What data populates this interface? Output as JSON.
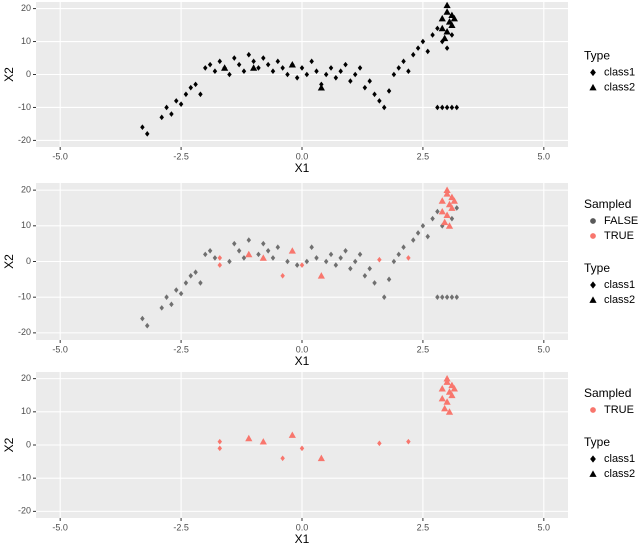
{
  "chart_data": [
    {
      "type": "scatter",
      "x_label": "X1",
      "y_label": "X2",
      "xlim": [
        -5.5,
        5.5
      ],
      "ylim": [
        -22,
        22
      ],
      "xticks": [
        {
          "value": -5,
          "label": "-5.0"
        },
        {
          "value": -2.5,
          "label": "-2.5"
        },
        {
          "value": 0,
          "label": "0.0"
        },
        {
          "value": 2.5,
          "label": "2.5"
        },
        {
          "value": 5,
          "label": "5.0"
        }
      ],
      "yticks": [
        -20,
        -10,
        0,
        10,
        20
      ],
      "grid": true,
      "legends": [
        {
          "title": "Type",
          "entries": [
            {
              "label": "class1",
              "shape": "diamond",
              "color": "#000000"
            },
            {
              "label": "class2",
              "shape": "triangle",
              "color": "#000000"
            }
          ]
        }
      ],
      "series": [
        {
          "shape": "diamond",
          "color": "#000000",
          "x": [
            -3.3,
            -3.2,
            -2.9,
            -2.8,
            -2.7,
            -2.6,
            -2.5,
            -2.4,
            -2.3,
            -2.2,
            -2.1,
            -2.0,
            -1.9,
            -1.8,
            -1.7,
            -1.6,
            -1.5,
            -1.4,
            -1.3,
            -1.2,
            -1.1,
            -1.0,
            -0.9,
            -0.8,
            -0.7,
            -0.6,
            -0.5,
            -0.4,
            -0.3,
            -0.2,
            -0.1,
            0.0,
            0.1,
            0.2,
            0.3,
            0.4,
            0.5,
            0.6,
            0.7,
            0.8,
            0.9,
            1.0,
            1.1,
            1.2,
            1.3,
            1.4,
            1.5,
            1.6,
            1.7,
            1.8,
            1.9,
            2.0,
            2.1,
            2.2,
            2.3,
            2.4,
            2.5,
            2.6,
            2.7,
            2.8,
            2.9,
            2.8,
            2.9,
            3.0,
            3.1,
            3.2,
            3.0,
            3.1
          ],
          "values": [
            -16,
            -18,
            -13,
            -10,
            -12,
            -8,
            -9,
            -6,
            -4,
            -3,
            -6,
            2,
            3,
            1,
            4,
            2,
            0,
            5,
            3,
            1,
            6,
            4,
            2,
            5,
            3,
            1,
            4,
            2,
            0,
            3,
            -1,
            2,
            0,
            4,
            1,
            -3,
            0,
            2,
            -1,
            1,
            3,
            -2,
            0,
            2,
            -4,
            -2,
            -6,
            -8,
            -10,
            -5,
            0,
            2,
            4,
            1,
            6,
            8,
            10,
            7,
            12,
            14,
            10,
            -10,
            -10,
            -10,
            -10,
            -10,
            8,
            12
          ]
        },
        {
          "shape": "triangle",
          "color": "#000000",
          "x": [
            -1.6,
            -1.0,
            -0.2,
            0.4,
            2.9,
            3.0,
            3.1,
            3.0,
            2.95,
            3.05,
            3.1,
            2.9,
            3.0,
            3.15
          ],
          "values": [
            2,
            2,
            3,
            -4,
            17,
            19,
            15,
            13,
            11,
            16,
            18,
            14,
            21,
            17
          ]
        }
      ]
    },
    {
      "type": "scatter",
      "x_label": "X1",
      "y_label": "X2",
      "xlim": [
        -5.5,
        5.5
      ],
      "ylim": [
        -22,
        22
      ],
      "xticks": [
        {
          "value": -5,
          "label": "-5.0"
        },
        {
          "value": -2.5,
          "label": "-2.5"
        },
        {
          "value": 0,
          "label": "0.0"
        },
        {
          "value": 2.5,
          "label": "2.5"
        },
        {
          "value": 5,
          "label": "5.0"
        }
      ],
      "yticks": [
        -20,
        -10,
        0,
        10,
        20
      ],
      "grid": true,
      "legends": [
        {
          "title": "Sampled",
          "entries": [
            {
              "label": "FALSE",
              "shape": "circle",
              "color": "#595959"
            },
            {
              "label": "TRUE",
              "shape": "circle",
              "color": "#F8766D"
            }
          ]
        },
        {
          "title": "Type",
          "entries": [
            {
              "label": "class1",
              "shape": "diamond",
              "color": "#000000"
            },
            {
              "label": "class2",
              "shape": "triangle",
              "color": "#000000"
            }
          ]
        }
      ],
      "series": [
        {
          "shape": "diamond",
          "color": "#595959",
          "x": [
            -3.3,
            -3.2,
            -2.9,
            -2.8,
            -2.7,
            -2.6,
            -2.5,
            -2.4,
            -2.3,
            -2.2,
            -2.1,
            -2.0,
            -1.9,
            -1.8,
            -1.5,
            -1.4,
            -1.3,
            -1.2,
            -1.1,
            -0.9,
            -0.8,
            -0.7,
            -0.6,
            -0.5,
            -0.3,
            -0.1,
            0.1,
            0.2,
            0.3,
            0.5,
            0.6,
            0.7,
            0.8,
            0.9,
            1.0,
            1.1,
            1.2,
            1.3,
            1.4,
            1.5,
            1.7,
            1.8,
            1.9,
            2.0,
            2.1,
            2.3,
            2.4,
            2.5,
            2.6,
            2.7,
            2.8,
            2.9,
            2.8,
            2.9,
            3.0,
            3.1,
            3.2,
            3.2,
            3.1
          ],
          "values": [
            -16,
            -18,
            -13,
            -10,
            -12,
            -8,
            -9,
            -6,
            -4,
            -3,
            -6,
            2,
            3,
            1,
            0,
            5,
            3,
            1,
            6,
            2,
            5,
            3,
            1,
            4,
            0,
            -1,
            0,
            4,
            1,
            0,
            2,
            -1,
            1,
            3,
            -2,
            0,
            2,
            -4,
            -2,
            -6,
            -10,
            -5,
            0,
            2,
            4,
            6,
            8,
            10,
            7,
            12,
            14,
            10,
            -10,
            -10,
            -10,
            -10,
            -10,
            15,
            12
          ]
        },
        {
          "shape": "diamond",
          "color": "#F8766D",
          "x": [
            -1.7,
            -1.7,
            -0.4,
            0.0,
            1.6,
            2.2
          ],
          "values": [
            1,
            -1,
            -4,
            -1,
            0.5,
            1
          ]
        },
        {
          "shape": "triangle",
          "color": "#F8766D",
          "x": [
            -1.1,
            -0.8,
            -0.2,
            0.4,
            2.9,
            3.0,
            3.1,
            3.0,
            2.95,
            3.05,
            3.1,
            2.9,
            3.0,
            3.15,
            3.05
          ],
          "values": [
            2,
            1,
            3,
            -4,
            17,
            19,
            15,
            13,
            11,
            16,
            18,
            14,
            20,
            17,
            10
          ]
        }
      ]
    },
    {
      "type": "scatter",
      "x_label": "X1",
      "y_label": "X2",
      "xlim": [
        -5.5,
        5.5
      ],
      "ylim": [
        -22,
        22
      ],
      "xticks": [
        {
          "value": -5,
          "label": "-5.0"
        },
        {
          "value": -2.5,
          "label": "-2.5"
        },
        {
          "value": 0,
          "label": "0.0"
        },
        {
          "value": 2.5,
          "label": "2.5"
        },
        {
          "value": 5,
          "label": "5.0"
        }
      ],
      "yticks": [
        -20,
        -10,
        0,
        10,
        20
      ],
      "grid": true,
      "legends": [
        {
          "title": "Sampled",
          "entries": [
            {
              "label": "TRUE",
              "shape": "circle",
              "color": "#F8766D"
            }
          ]
        },
        {
          "title": "Type",
          "entries": [
            {
              "label": "class1",
              "shape": "diamond",
              "color": "#000000"
            },
            {
              "label": "class2",
              "shape": "triangle",
              "color": "#000000"
            }
          ]
        }
      ],
      "series": [
        {
          "shape": "diamond",
          "color": "#F8766D",
          "x": [
            -1.7,
            -1.7,
            -0.4,
            0.0,
            1.6,
            2.2
          ],
          "values": [
            1,
            -1,
            -4,
            -1,
            0.5,
            1
          ]
        },
        {
          "shape": "triangle",
          "color": "#F8766D",
          "x": [
            -1.1,
            -0.8,
            -0.2,
            0.4,
            2.9,
            3.0,
            3.1,
            3.0,
            2.95,
            3.05,
            3.1,
            2.9,
            3.0,
            3.15,
            3.05
          ],
          "values": [
            2,
            1,
            3,
            -4,
            17,
            19,
            15,
            13,
            11,
            16,
            18,
            14,
            20,
            17,
            10
          ]
        }
      ]
    }
  ]
}
